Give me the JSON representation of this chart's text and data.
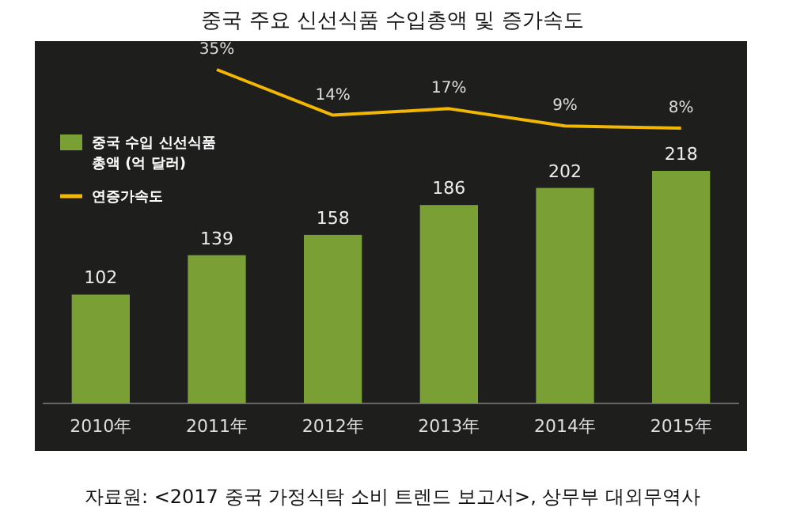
{
  "chart_data": [
    {
      "type": "bar",
      "categories": [
        "2010年",
        "2011年",
        "2012年",
        "2013年",
        "2014年",
        "2015年"
      ],
      "series": [
        {
          "name": "중국 수입 신선식품 총액 (억 달러)",
          "color": "#7a9f35",
          "values": [
            102,
            139,
            158,
            186,
            202,
            218
          ]
        }
      ],
      "data_labels": true,
      "legend": "top left",
      "annotations": [
        "자료원: <2017 중국 가정식탁 소비 트렌드 보고서>, 상무부 대외무역사"
      ]
    },
    {
      "type": "line",
      "title": "중국 주요 신선식품 수입총액 및 증가속도",
      "categories": [
        null,
        null,
        null,
        null,
        null,
        null
      ],
      "series": [
        {
          "name": "연증가속도",
          "color": "#f2b705",
          "values": [
            null,
            35,
            14,
            17,
            9,
            8
          ],
          "value_labels": [
            null,
            "35%",
            "14%",
            "17%",
            "9%",
            "8%"
          ]
        }
      ],
      "legend": "bottom left"
    }
  ]
}
